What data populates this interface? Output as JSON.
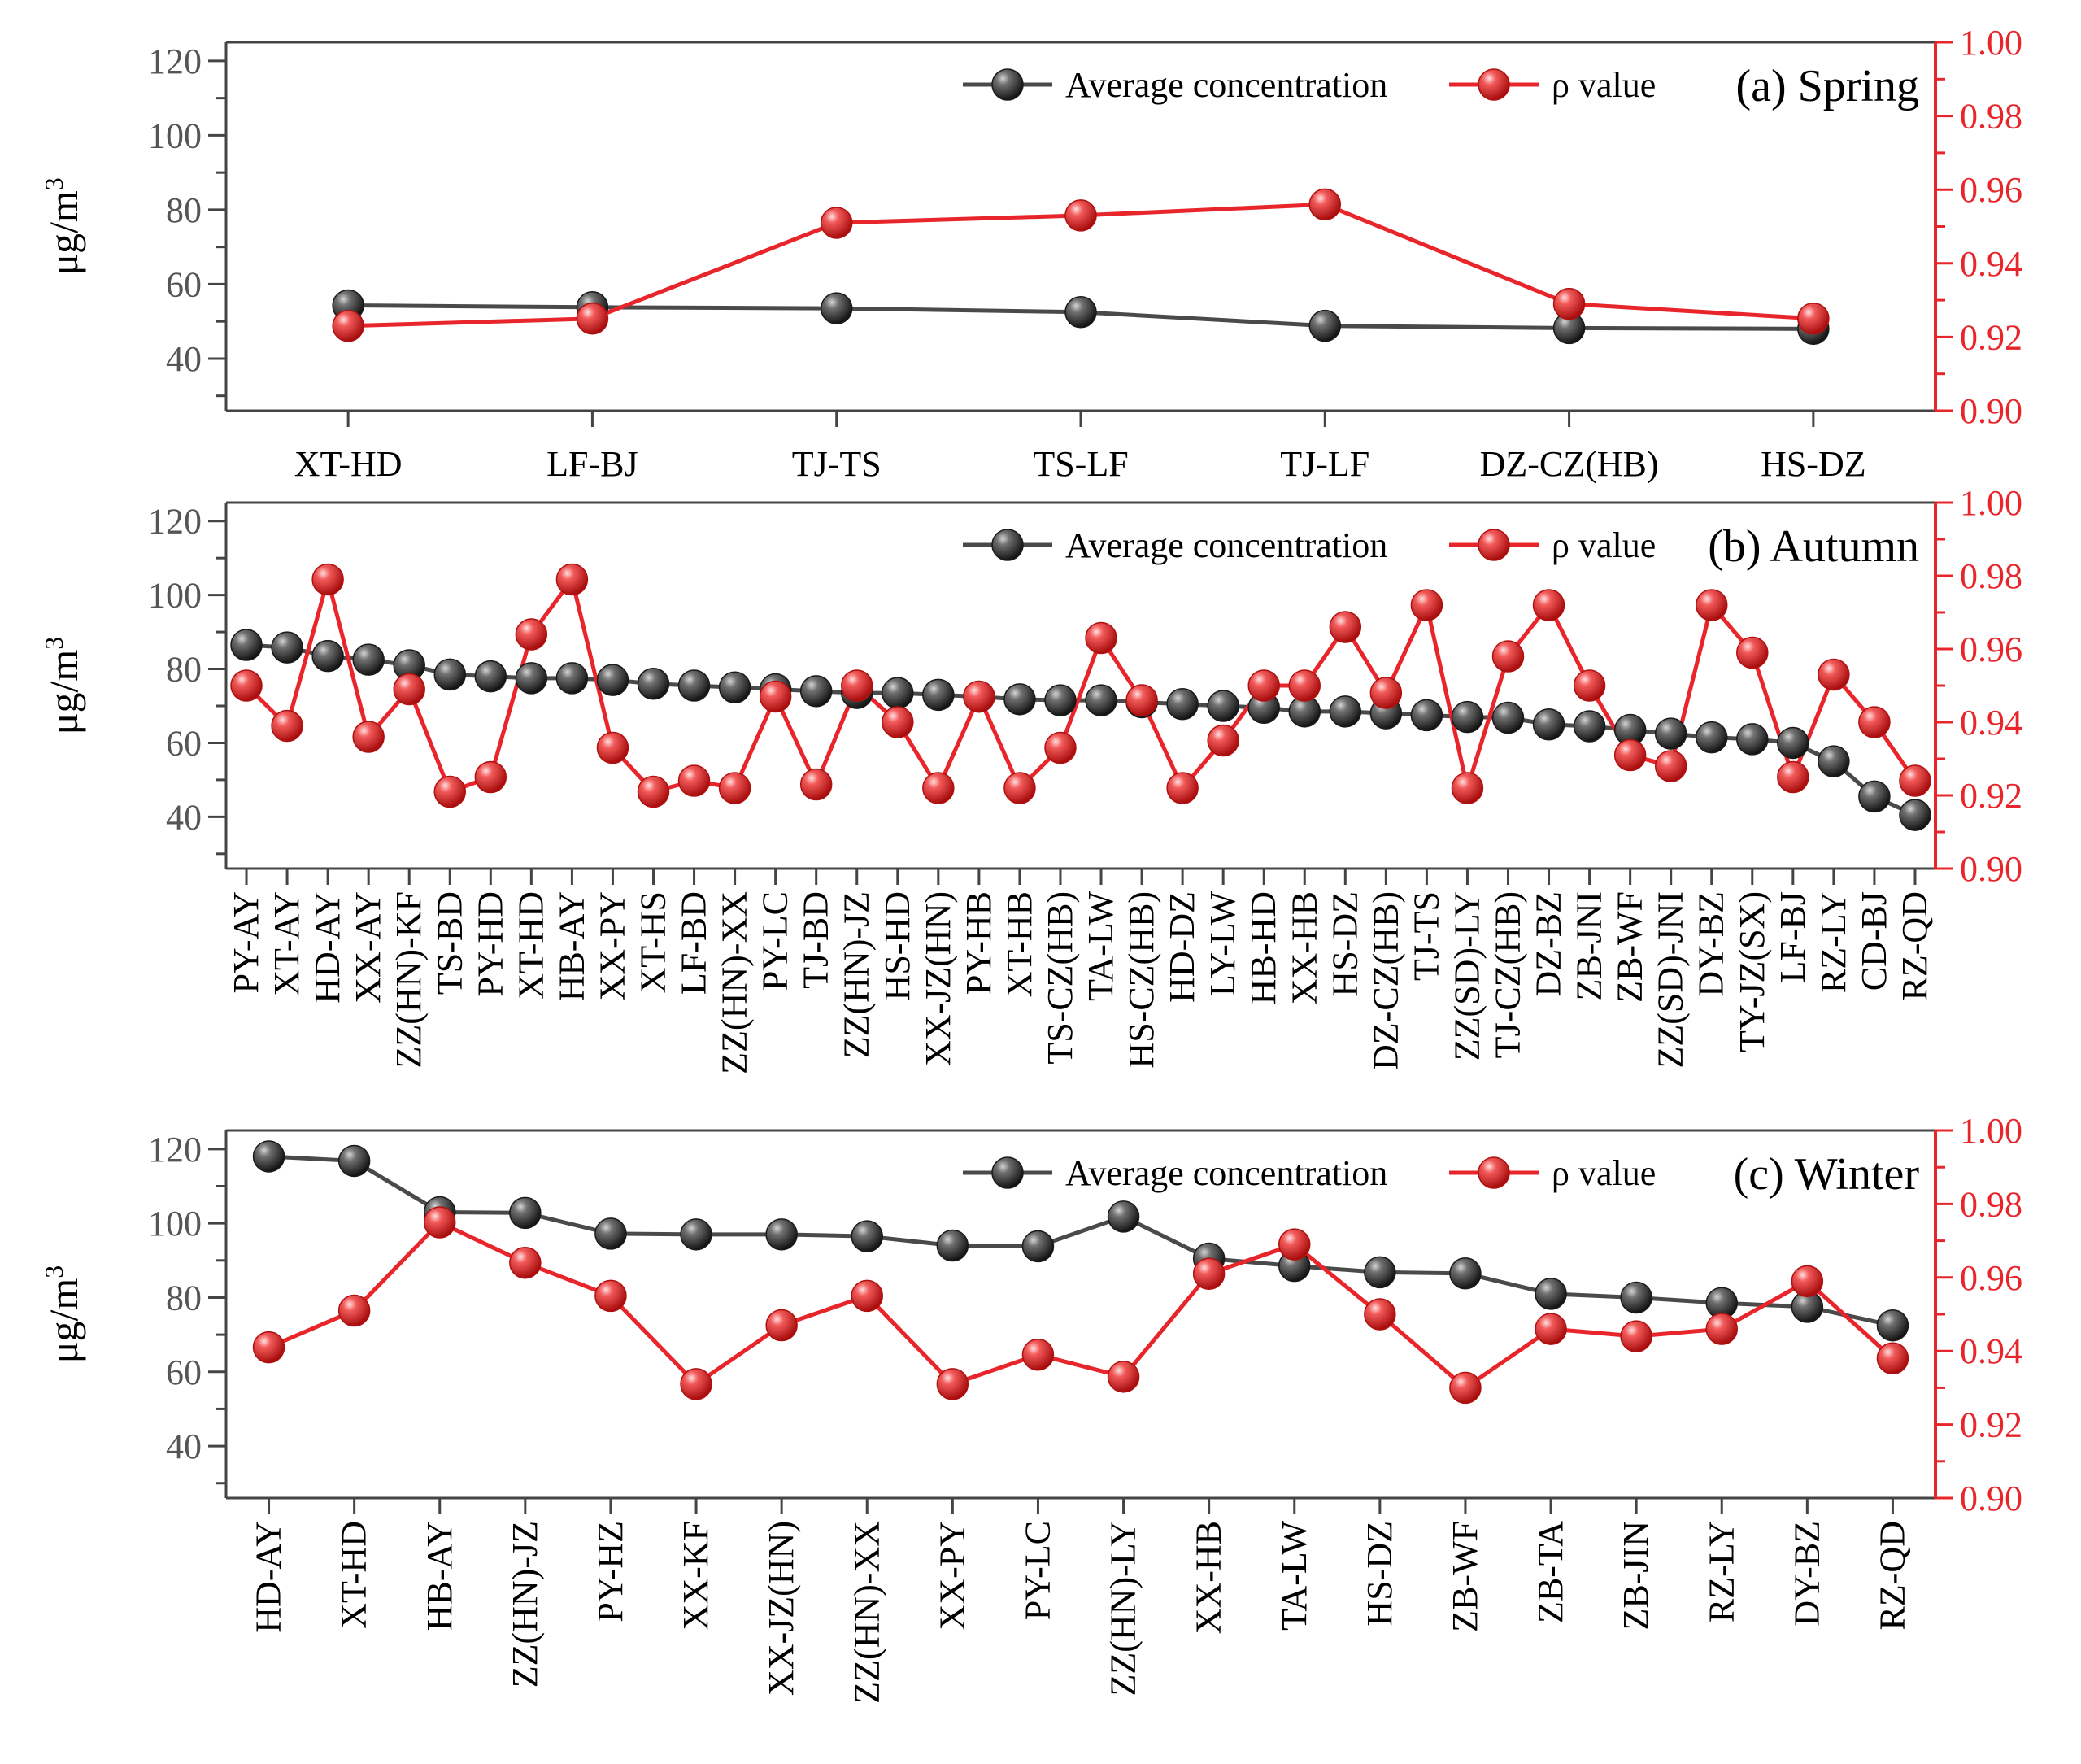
{
  "colors": {
    "avg": "#4a4a4a",
    "rho": "#e8252a",
    "axis_left": "#444444",
    "axis_right": "#e8252a"
  },
  "chart_data": [
    {
      "type": "line",
      "title": "(a) Spring",
      "ylabel": "μg/m",
      "ylabel_sup": "3",
      "ylim": [
        26,
        125
      ],
      "y_ticks": [
        "40",
        "60",
        "80",
        "100",
        "120"
      ],
      "ylim_right": [
        0.9,
        1.0
      ],
      "y2_ticks": [
        "0.90",
        "0.92",
        "0.94",
        "0.96",
        "0.98",
        "1.00"
      ],
      "legend": [
        "Average concentration",
        "ρ value"
      ],
      "categories": [
        "XT-HD",
        "LF-BJ",
        "TJ-TS",
        "TS-LF",
        "TJ-LF",
        "DZ-CZ(HB)",
        "HS-DZ"
      ],
      "series": [
        {
          "name": "Average concentration",
          "axis": "left",
          "values": [
            54.3,
            53.8,
            53.5,
            52.5,
            48.8,
            48.2,
            48.0
          ]
        },
        {
          "name": "ρ value",
          "axis": "right",
          "values": [
            0.923,
            0.925,
            0.951,
            0.953,
            0.956,
            0.929,
            0.925
          ]
        }
      ]
    },
    {
      "type": "line",
      "title": "(b) Autumn",
      "ylabel": "μg/m",
      "ylabel_sup": "3",
      "ylim": [
        26,
        125
      ],
      "y_ticks": [
        "40",
        "60",
        "80",
        "100",
        "120"
      ],
      "ylim_right": [
        0.9,
        1.0
      ],
      "y2_ticks": [
        "0.90",
        "0.92",
        "0.94",
        "0.96",
        "0.98",
        "1.00"
      ],
      "legend": [
        "Average concentration",
        "ρ value"
      ],
      "categories": [
        "PY-AY",
        "XT-AY",
        "HD-AY",
        "XX-AY",
        "ZZ(HN)-KF",
        "TS-BD",
        "PY-HD",
        "XT-HD",
        "HB-AY",
        "XX-PY",
        "XT-HS",
        "LF-BD",
        "ZZ(HN)-XX",
        "PY-LC",
        "TJ-BD",
        "ZZ(HN)-JZ",
        "HS-HD",
        "XX-JZ(HN)",
        "PY-HB",
        "XT-HB",
        "TS-CZ(HB)",
        "TA-LW",
        "HS-CZ(HB)",
        "HD-DZ",
        "LY-LW",
        "HB-HD",
        "XX-HB",
        "HS-DZ",
        "DZ-CZ(HB)",
        "TJ-TS",
        "ZZ(SD)-LY",
        "TJ-CZ(HB)",
        "DZ-BZ",
        "ZB-JNI",
        "ZB-WF",
        "ZZ(SD)-JNI",
        "DY-BZ",
        "TY-JZ(SX)",
        "LF-BJ",
        "RZ-LY",
        "CD-BJ",
        "RZ-QD"
      ],
      "series": [
        {
          "name": "Average concentration",
          "axis": "left",
          "values": [
            86.5,
            85.8,
            83.5,
            82.5,
            81.0,
            78.5,
            78.0,
            77.5,
            77.5,
            77.0,
            76.0,
            75.5,
            75.0,
            74.5,
            74.0,
            73.5,
            73.5,
            73.0,
            72.5,
            71.8,
            71.5,
            71.5,
            71.0,
            70.5,
            70.0,
            69.5,
            68.5,
            68.5,
            68.0,
            67.5,
            67.0,
            66.8,
            65.0,
            64.5,
            63.5,
            62.5,
            61.5,
            61.0,
            60.0,
            55.0,
            45.5,
            40.5
          ]
        },
        {
          "name": "ρ value",
          "axis": "right",
          "values": [
            0.95,
            0.939,
            0.979,
            0.936,
            0.949,
            0.921,
            0.925,
            0.964,
            0.979,
            0.933,
            0.921,
            0.924,
            0.922,
            0.947,
            0.923,
            0.95,
            0.94,
            0.922,
            0.947,
            0.922,
            0.933,
            0.963,
            0.946,
            0.922,
            0.935,
            0.95,
            0.95,
            0.966,
            0.948,
            0.972,
            0.922,
            0.958,
            0.972,
            0.95,
            0.931,
            0.928,
            0.972,
            0.959,
            0.925,
            0.953,
            0.94,
            0.924
          ]
        }
      ]
    },
    {
      "type": "line",
      "title": "(c) Winter",
      "ylabel": "μg/m",
      "ylabel_sup": "3",
      "ylim": [
        26,
        125
      ],
      "y_ticks": [
        "40",
        "60",
        "80",
        "100",
        "120"
      ],
      "ylim_right": [
        0.9,
        1.0
      ],
      "y2_ticks": [
        "0.90",
        "0.92",
        "0.94",
        "0.96",
        "0.98",
        "1.00"
      ],
      "legend": [
        "Average concentration",
        "ρ value"
      ],
      "categories": [
        "HD-AY",
        "XT-HD",
        "HB-AY",
        "ZZ(HN)-JZ",
        "PY-HZ",
        "XX-KF",
        "XX-JZ(HN)",
        "ZZ(HN)-XX",
        "XX-PY",
        "PY-LC",
        "ZZ(HN)-LY",
        "XX-HB",
        "TA-LW",
        "HS-DZ",
        "ZB-WF",
        "ZB-TA",
        "ZB-JIN",
        "RZ-LY",
        "DY-BZ",
        "RZ-QD"
      ],
      "series": [
        {
          "name": "Average concentration",
          "axis": "left",
          "values": [
            118.0,
            116.8,
            103.0,
            102.8,
            97.2,
            97.0,
            97.0,
            96.5,
            94.0,
            93.8,
            101.8,
            90.5,
            88.5,
            86.8,
            86.5,
            81.0,
            80.0,
            78.5,
            77.5,
            72.5
          ]
        },
        {
          "name": "ρ value",
          "axis": "right",
          "values": [
            0.941,
            0.951,
            0.975,
            0.964,
            0.955,
            0.931,
            0.947,
            0.955,
            0.931,
            0.939,
            0.933,
            0.961,
            0.969,
            0.95,
            0.93,
            0.946,
            0.944,
            0.946,
            0.959,
            0.938
          ]
        }
      ]
    }
  ]
}
